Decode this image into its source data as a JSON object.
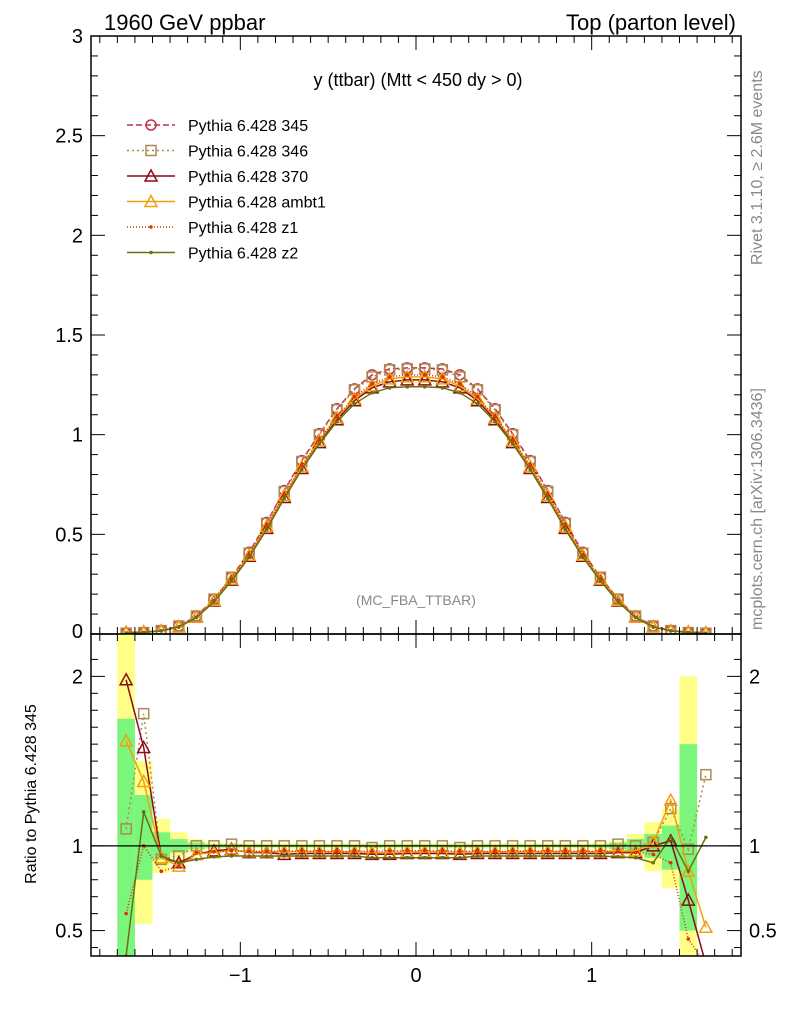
{
  "header": {
    "left": "1960 GeV ppbar",
    "right": "Top (parton level)"
  },
  "side_labels": {
    "rivet": "Rivet 3.1.10, ≥ 2.6M events",
    "mcplots": "mcplots.cern.ch [arXiv:1306.3436]"
  },
  "colors": {
    "s345": "#c0304a",
    "s346": "#b08850",
    "s370": "#8b0a14",
    "ambt1": "#f0a010",
    "z1": "#e03000",
    "z2": "#6a7010",
    "band_inner": "#7cf57c",
    "band_outer": "#ffff88"
  },
  "chart_data": [
    {
      "type": "line",
      "title": "y (ttbar) (Mtt < 450 dy > 0)",
      "watermark": "(MC_FBA_TTBAR)",
      "xlabel": "",
      "ylabel": "",
      "xlim": [
        -1.85,
        1.85
      ],
      "ylim": [
        0,
        3
      ],
      "yticks": [
        "0.5",
        "1",
        "1.5",
        "2",
        "2.5",
        "3"
      ],
      "ytick_values": [
        0.5,
        1,
        1.5,
        2,
        2.5,
        3
      ],
      "bottom_tick_label": "0",
      "legend_position": "top-left",
      "x": [
        -1.65,
        -1.55,
        -1.45,
        -1.35,
        -1.25,
        -1.15,
        -1.05,
        -0.95,
        -0.85,
        -0.75,
        -0.65,
        -0.55,
        -0.45,
        -0.35,
        -0.25,
        -0.15,
        -0.05,
        0.05,
        0.15,
        0.25,
        0.35,
        0.45,
        0.55,
        0.65,
        0.75,
        0.85,
        0.95,
        1.05,
        1.15,
        1.25,
        1.35,
        1.45,
        1.55,
        1.65
      ],
      "series": [
        {
          "name": "Pythia 6.428 345",
          "color_key": "s345",
          "marker": "circle",
          "dash": "6,3",
          "values": [
            0.004,
            0.007,
            0.017,
            0.04,
            0.09,
            0.175,
            0.285,
            0.41,
            0.56,
            0.72,
            0.87,
            1.005,
            1.13,
            1.23,
            1.3,
            1.33,
            1.335,
            1.335,
            1.33,
            1.3,
            1.23,
            1.13,
            1.005,
            0.87,
            0.72,
            0.56,
            0.41,
            0.285,
            0.175,
            0.09,
            0.04,
            0.017,
            0.007,
            0.004
          ]
        },
        {
          "name": "Pythia 6.428 346",
          "color_key": "s346",
          "marker": "square",
          "dash": "2,3",
          "values": [
            0.004,
            0.007,
            0.017,
            0.04,
            0.09,
            0.175,
            0.285,
            0.405,
            0.555,
            0.715,
            0.865,
            1.0,
            1.125,
            1.225,
            1.29,
            1.325,
            1.33,
            1.33,
            1.325,
            1.29,
            1.225,
            1.125,
            1.0,
            0.865,
            0.715,
            0.555,
            0.405,
            0.285,
            0.175,
            0.09,
            0.04,
            0.017,
            0.007,
            0.004
          ]
        },
        {
          "name": "Pythia 6.428 370",
          "color_key": "s370",
          "marker": "triangle",
          "dash": "",
          "values": [
            0.008,
            0.01,
            0.016,
            0.036,
            0.085,
            0.165,
            0.27,
            0.39,
            0.53,
            0.685,
            0.83,
            0.96,
            1.075,
            1.17,
            1.235,
            1.265,
            1.275,
            1.275,
            1.265,
            1.235,
            1.17,
            1.075,
            0.96,
            0.83,
            0.685,
            0.53,
            0.39,
            0.27,
            0.165,
            0.085,
            0.036,
            0.016,
            0.01,
            0.006
          ]
        },
        {
          "name": "Pythia 6.428 ambt1",
          "color_key": "ambt1",
          "marker": "triangle",
          "dash": "",
          "values": [
            0.007,
            0.009,
            0.016,
            0.036,
            0.085,
            0.168,
            0.275,
            0.395,
            0.54,
            0.695,
            0.84,
            0.97,
            1.085,
            1.18,
            1.245,
            1.28,
            1.29,
            1.29,
            1.28,
            1.245,
            1.18,
            1.085,
            0.97,
            0.84,
            0.695,
            0.54,
            0.395,
            0.275,
            0.168,
            0.085,
            0.036,
            0.016,
            0.009,
            0.005
          ]
        },
        {
          "name": "Pythia 6.428 z1",
          "color_key": "z1",
          "marker": "dot",
          "dash": "1,2",
          "values": [
            0.005,
            0.007,
            0.015,
            0.035,
            0.084,
            0.168,
            0.276,
            0.397,
            0.542,
            0.698,
            0.845,
            0.975,
            1.09,
            1.19,
            1.255,
            1.29,
            1.3,
            1.3,
            1.29,
            1.255,
            1.19,
            1.09,
            0.975,
            0.845,
            0.698,
            0.542,
            0.397,
            0.276,
            0.168,
            0.084,
            0.035,
            0.015,
            0.007,
            0.003
          ]
        },
        {
          "name": "Pythia 6.428 z2",
          "color_key": "z2",
          "marker": "dot",
          "dash": "",
          "values": [
            0.005,
            0.008,
            0.016,
            0.035,
            0.082,
            0.162,
            0.266,
            0.385,
            0.525,
            0.68,
            0.825,
            0.955,
            1.065,
            1.155,
            1.21,
            1.235,
            1.24,
            1.24,
            1.235,
            1.21,
            1.155,
            1.065,
            0.955,
            0.825,
            0.68,
            0.525,
            0.385,
            0.266,
            0.162,
            0.082,
            0.035,
            0.016,
            0.008,
            0.004
          ]
        }
      ]
    },
    {
      "type": "line",
      "title": "",
      "xlabel": "",
      "ylabel": "Ratio to Pythia 6.428 345",
      "xlim": [
        -1.85,
        1.85
      ],
      "ylim": [
        0.35,
        2.25
      ],
      "xticks": [
        "−1",
        "0",
        "1"
      ],
      "xtick_values": [
        -1,
        0,
        1
      ],
      "yticks": [
        "0.5",
        "1",
        "2"
      ],
      "ytick_values": [
        0.5,
        1,
        2
      ],
      "reference_line": 1,
      "bands": {
        "x_edges": [
          -1.7,
          -1.6,
          -1.5,
          -1.4,
          -1.3,
          -1.2,
          -1.1,
          -1.0,
          1.0,
          1.1,
          1.2,
          1.3,
          1.4,
          1.5,
          1.6,
          1.7
        ],
        "inner_low": [
          0.35,
          0.8,
          0.92,
          0.96,
          0.98,
          0.99,
          0.99,
          0.99,
          0.99,
          0.98,
          0.96,
          0.93,
          0.86,
          0.5
        ],
        "inner_high": [
          1.75,
          1.3,
          1.08,
          1.04,
          1.02,
          1.01,
          1.01,
          1.01,
          1.01,
          1.02,
          1.04,
          1.07,
          1.12,
          1.6
        ],
        "outer_low": [
          0.35,
          0.54,
          0.84,
          0.93,
          0.96,
          0.98,
          0.985,
          0.985,
          0.98,
          0.97,
          0.93,
          0.85,
          0.75,
          0.35
        ],
        "outer_high": [
          2.25,
          1.5,
          1.16,
          1.08,
          1.04,
          1.02,
          1.015,
          1.015,
          1.02,
          1.03,
          1.07,
          1.14,
          1.22,
          2.0
        ]
      },
      "x": [
        -1.65,
        -1.55,
        -1.45,
        -1.35,
        -1.25,
        -1.15,
        -1.05,
        -0.95,
        -0.85,
        -0.75,
        -0.65,
        -0.55,
        -0.45,
        -0.35,
        -0.25,
        -0.15,
        -0.05,
        0.05,
        0.15,
        0.25,
        0.35,
        0.45,
        0.55,
        0.65,
        0.75,
        0.85,
        0.95,
        1.05,
        1.15,
        1.25,
        1.35,
        1.45,
        1.55,
        1.65
      ],
      "series": [
        {
          "name": "Pythia 6.428 346",
          "color_key": "s346",
          "marker": "square",
          "dash": "2,3",
          "values": [
            1.1,
            1.78,
            0.92,
            0.94,
            1.0,
            1.0,
            1.01,
            1.0,
            1.0,
            1.0,
            1.0,
            1.0,
            1.0,
            1.0,
            0.99,
            1.0,
            1.0,
            1.0,
            1.0,
            0.99,
            1.0,
            1.0,
            1.0,
            1.0,
            1.0,
            1.0,
            1.0,
            1.0,
            1.01,
            1.0,
            1.02,
            1.22,
            0.98,
            1.42
          ]
        },
        {
          "name": "Pythia 6.428 370",
          "color_key": "s370",
          "marker": "triangle",
          "dash": "",
          "values": [
            1.98,
            1.58,
            0.93,
            0.9,
            0.95,
            0.97,
            0.98,
            0.96,
            0.96,
            0.95,
            0.955,
            0.955,
            0.955,
            0.955,
            0.95,
            0.95,
            0.955,
            0.955,
            0.955,
            0.95,
            0.955,
            0.955,
            0.955,
            0.955,
            0.955,
            0.955,
            0.955,
            0.955,
            0.96,
            0.96,
            1.0,
            1.03,
            0.68,
            0.2
          ]
        },
        {
          "name": "Pythia 6.428 ambt1",
          "color_key": "ambt1",
          "marker": "triangle",
          "dash": "",
          "values": [
            1.62,
            1.38,
            0.93,
            0.88,
            0.95,
            0.96,
            0.975,
            0.965,
            0.965,
            0.965,
            0.965,
            0.965,
            0.965,
            0.965,
            0.96,
            0.96,
            0.965,
            0.965,
            0.965,
            0.96,
            0.965,
            0.965,
            0.965,
            0.965,
            0.965,
            0.965,
            0.965,
            0.965,
            0.97,
            0.97,
            1.02,
            1.27,
            0.85,
            0.52
          ]
        },
        {
          "name": "Pythia 6.428 z1",
          "color_key": "z1",
          "marker": "dot",
          "dash": "1,2",
          "values": [
            0.6,
            1.0,
            0.85,
            0.88,
            0.96,
            0.965,
            0.97,
            0.968,
            0.968,
            0.97,
            0.97,
            0.97,
            0.965,
            0.968,
            0.968,
            0.97,
            0.972,
            0.972,
            0.97,
            0.968,
            0.968,
            0.965,
            0.97,
            0.97,
            0.97,
            0.968,
            0.968,
            0.97,
            0.965,
            0.96,
            0.95,
            0.9,
            0.45,
            0.2
          ]
        },
        {
          "name": "Pythia 6.428 z2",
          "color_key": "z2",
          "marker": "dot",
          "dash": "",
          "values": [
            0.35,
            1.2,
            0.94,
            0.9,
            0.92,
            0.935,
            0.94,
            0.94,
            0.94,
            0.94,
            0.94,
            0.94,
            0.94,
            0.94,
            0.93,
            0.93,
            0.93,
            0.93,
            0.93,
            0.93,
            0.94,
            0.94,
            0.94,
            0.94,
            0.94,
            0.94,
            0.94,
            0.94,
            0.935,
            0.93,
            0.9,
            1.05,
            0.85,
            1.05
          ]
        }
      ]
    }
  ]
}
